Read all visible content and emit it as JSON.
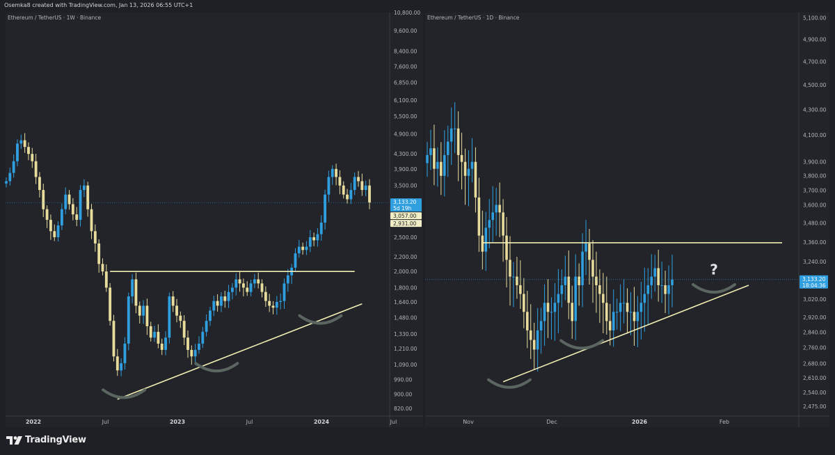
{
  "header": {
    "text": "Osemka8 created with TradingView.com, Jan 13, 2026 06:55 UTC+1"
  },
  "footer": {
    "brand": "TradingView",
    "logo_icon": "tradingview-logo-icon"
  },
  "colors": {
    "background": "#1e2026",
    "pane_background": "#22242a",
    "up_candle": "#2f9fe0",
    "down_candle": "#e8dc9c",
    "trendline": "#f3eeb2",
    "arc": "#5c6660",
    "last_price_badge": "#2f9fe0",
    "axis_text": "#b2b5be",
    "question_mark": "#dfe3e8"
  },
  "chart_data": [
    {
      "type": "candlestick",
      "title": "Ethereum / TetherUS · 1W · Binance",
      "symbol": "ETHUSDT",
      "interval": "1W",
      "exchange": "Binance",
      "scale": "log",
      "ylim": [
        780,
        10800
      ],
      "y_ticks": [
        "10,800.00",
        "9,600.00",
        "8,400.00",
        "7,600.00",
        "6,850.00",
        "6,100.00",
        "5,500.00",
        "4,900.00",
        "4,300.00",
        "3,900.00",
        "3,500.00",
        "2,500.00",
        "2,200.00",
        "2,000.00",
        "1,800.00",
        "1,640.00",
        "1,480.00",
        "1,330.00",
        "1,210.00",
        "1,090.00",
        "990.00",
        "900.00",
        "820.00"
      ],
      "x_ticks": [
        {
          "label": "2022",
          "bold": true
        },
        {
          "label": "Jul",
          "bold": false
        },
        {
          "label": "2023",
          "bold": true
        },
        {
          "label": "Jul",
          "bold": false
        },
        {
          "label": "2024",
          "bold": true
        },
        {
          "label": "Jul",
          "bold": false
        }
      ],
      "price_labels": [
        {
          "price": "3,133.20",
          "countdown": "5d 19h",
          "kind": "last"
        },
        {
          "price": "3,057.00",
          "kind": "level"
        },
        {
          "price": "2,931.00",
          "kind": "level"
        }
      ],
      "close_path": [
        3600,
        3800,
        4100,
        4600,
        4700,
        4500,
        4300,
        4100,
        3700,
        3400,
        3000,
        2800,
        2600,
        2500,
        2700,
        3000,
        3300,
        3100,
        2900,
        2800,
        3400,
        3500,
        3000,
        2600,
        2400,
        2100,
        2000,
        1800,
        1450,
        1150,
        1050,
        1100,
        1250,
        1700,
        1900,
        1600,
        1500,
        1600,
        1400,
        1300,
        1350,
        1250,
        1200,
        1300,
        1700,
        1600,
        1500,
        1450,
        1300,
        1200,
        1150,
        1200,
        1250,
        1350,
        1450,
        1550,
        1650,
        1600,
        1700,
        1650,
        1750,
        1800,
        1900,
        1850,
        1800,
        1750,
        1850,
        1900,
        1850,
        1750,
        1650,
        1600,
        1580,
        1640,
        1650,
        1850,
        1950,
        2050,
        2250,
        2350,
        2300,
        2350,
        2500,
        2450,
        2550,
        2750,
        3300,
        3700,
        3900,
        3700,
        3500,
        3300,
        3200,
        3400,
        3700,
        3600,
        3400,
        3500,
        3133
      ],
      "annotations": [
        {
          "type": "horizontal_line",
          "level": 2000,
          "from_index": 28,
          "to_index": 94
        },
        {
          "type": "trendline",
          "points": [
            [
              30,
              870
            ],
            [
              96,
              1620
            ]
          ]
        },
        {
          "type": "smile_arc",
          "near_index": 31,
          "price": 900
        },
        {
          "type": "smile_arc",
          "near_index": 56,
          "price": 1070
        },
        {
          "type": "smile_arc",
          "near_index": 84,
          "price": 1460
        }
      ]
    },
    {
      "type": "candlestick",
      "title": "Ethereum / TetherUS · 1D · Binance",
      "symbol": "ETHUSDT",
      "interval": "1D",
      "exchange": "Binance",
      "scale": "log",
      "ylim": [
        2430,
        5150
      ],
      "y_ticks": [
        "5,100.00",
        "4,900.00",
        "4,700.00",
        "4,500.00",
        "4,300.00",
        "4,100.00",
        "3,900.00",
        "3,800.00",
        "3,700.00",
        "3,600.00",
        "3,480.00",
        "3,360.00",
        "3,240.00",
        "3,020.00",
        "2,920.00",
        "2,840.00",
        "2,760.00",
        "2,680.00",
        "2,610.00",
        "2,540.00",
        "2,475.00"
      ],
      "x_ticks": [
        {
          "label": "Nov",
          "bold": false
        },
        {
          "label": "Dec",
          "bold": false
        },
        {
          "label": "2026",
          "bold": true
        },
        {
          "label": "Feb",
          "bold": false
        }
      ],
      "price_labels": [
        {
          "price": "3,133.20",
          "countdown": "18:04:36",
          "kind": "last"
        }
      ],
      "close_path": [
        3950,
        4000,
        3850,
        3900,
        3800,
        3950,
        4050,
        4150,
        4150,
        3950,
        3900,
        3800,
        3850,
        3900,
        3650,
        3400,
        3300,
        3450,
        3500,
        3550,
        3600,
        3550,
        3400,
        3250,
        3150,
        3150,
        3100,
        3050,
        2950,
        2850,
        2800,
        2750,
        2850,
        2900,
        3000,
        2950,
        2950,
        3000,
        3050,
        3100,
        3150,
        3000,
        2900,
        3150,
        3100,
        3300,
        3350,
        3250,
        3150,
        3100,
        3050,
        3000,
        2900,
        2850,
        2950,
        2950,
        3000,
        3000,
        2950,
        2950,
        2900,
        2950,
        3000,
        3050,
        3100,
        3150,
        3200,
        3100,
        3100,
        3050,
        3100,
        3133
      ],
      "annotations": [
        {
          "type": "horizontal_line",
          "level": 3355,
          "from_index": 16,
          "to_index": -1
        },
        {
          "type": "trendline",
          "points": [
            [
              22,
              2590
            ],
            [
              -1,
              3100
            ]
          ]
        },
        {
          "type": "smile_arc",
          "near_index": 23,
          "price": 2580
        },
        {
          "type": "smile_arc",
          "near_index": 44,
          "price": 2775
        },
        {
          "type": "smile_arc",
          "near_index": -1,
          "price": 3080
        },
        {
          "type": "text",
          "text": "?",
          "near_index": -1,
          "price": 3180
        }
      ]
    }
  ]
}
